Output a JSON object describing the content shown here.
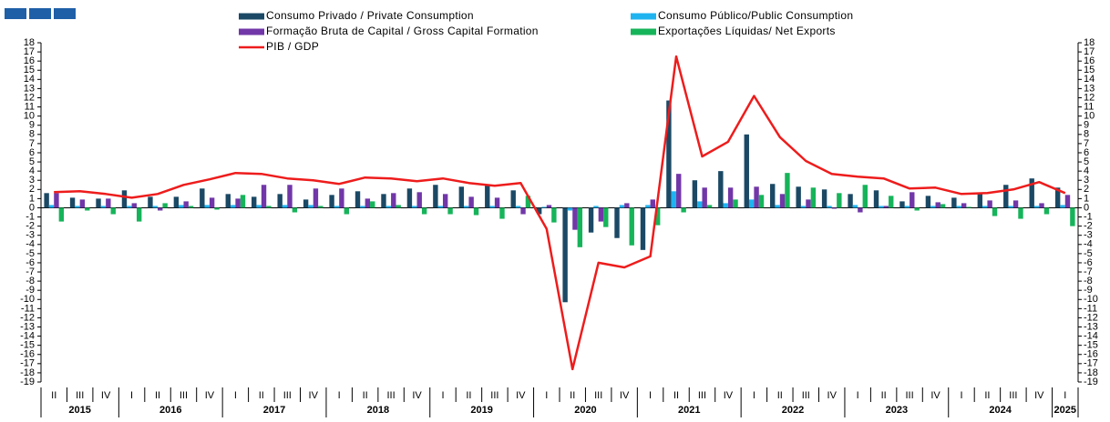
{
  "chart_data": {
    "type": "bar",
    "categories": [
      "II",
      "III",
      "IV",
      "I",
      "II",
      "III",
      "IV",
      "I",
      "II",
      "III",
      "IV",
      "I",
      "II",
      "III",
      "IV",
      "I",
      "II",
      "III",
      "IV",
      "I",
      "II",
      "III",
      "IV",
      "I",
      "II",
      "III",
      "IV",
      "I",
      "II",
      "III",
      "IV",
      "I",
      "II",
      "III",
      "IV",
      "I",
      "II",
      "III",
      "IV",
      "I"
    ],
    "years": [
      "2015",
      "2015",
      "2015",
      "2016",
      "2016",
      "2016",
      "2016",
      "2017",
      "2017",
      "2017",
      "2017",
      "2018",
      "2018",
      "2018",
      "2018",
      "2019",
      "2019",
      "2019",
      "2019",
      "2020",
      "2020",
      "2020",
      "2020",
      "2021",
      "2021",
      "2021",
      "2021",
      "2022",
      "2022",
      "2022",
      "2022",
      "2023",
      "2023",
      "2023",
      "2023",
      "2024",
      "2024",
      "2024",
      "2024",
      "2025"
    ],
    "series": [
      {
        "name": "Consumo Privado / Private Consumption",
        "color": "#1b4965",
        "type": "bar",
        "values": [
          1.6,
          1.1,
          1.0,
          1.9,
          1.2,
          1.2,
          2.1,
          1.5,
          1.2,
          1.5,
          0.9,
          1.4,
          1.8,
          1.5,
          2.1,
          2.5,
          2.3,
          2.5,
          1.9,
          -0.7,
          -10.3,
          -2.7,
          -3.3,
          -4.6,
          11.7,
          3.0,
          4.0,
          8.0,
          2.6,
          2.3,
          2.0,
          1.5,
          1.9,
          0.7,
          1.3,
          1.1,
          1.5,
          2.5,
          3.2,
          2.2
        ]
      },
      {
        "name": "Consumo Público/Public Consumption",
        "color": "#1fb4f0",
        "type": "bar",
        "values": [
          0.3,
          0.2,
          0.2,
          0.2,
          0.2,
          0.3,
          0.3,
          0.3,
          0.3,
          0.3,
          0.3,
          0.2,
          0.2,
          0.2,
          0.2,
          0.2,
          0.2,
          0.2,
          0.2,
          0.1,
          -0.3,
          0.2,
          0.3,
          0.3,
          1.8,
          0.7,
          0.5,
          0.9,
          0.3,
          0.2,
          0.2,
          0.3,
          0.2,
          0.2,
          0.2,
          0.2,
          0.2,
          0.2,
          0.2,
          0.3
        ]
      },
      {
        "name": "Formação Bruta de Capital / Gross Capital Formation",
        "color": "#7137a8",
        "type": "bar",
        "values": [
          1.6,
          0.9,
          1.0,
          0.5,
          -0.3,
          0.7,
          1.1,
          1.0,
          2.5,
          2.5,
          2.1,
          2.1,
          1.0,
          1.6,
          1.7,
          1.5,
          1.2,
          1.1,
          -0.7,
          0.3,
          -2.4,
          -1.5,
          0.5,
          0.9,
          3.7,
          2.2,
          2.2,
          2.3,
          1.5,
          0.9,
          -0.1,
          -0.5,
          0.2,
          1.7,
          0.6,
          0.5,
          0.8,
          0.8,
          0.5,
          1.4
        ]
      },
      {
        "name": "Exportações Líquidas/ Net Exports",
        "color": "#16b45a",
        "type": "bar",
        "values": [
          -1.5,
          -0.3,
          -0.7,
          -1.5,
          0.5,
          0.2,
          -0.2,
          1.4,
          0.2,
          -0.5,
          0.2,
          -0.7,
          0.7,
          0.3,
          -0.7,
          -0.7,
          -0.8,
          -1.2,
          1.3,
          -1.6,
          -4.3,
          -2.1,
          -4.1,
          -1.9,
          -0.5,
          0.3,
          0.9,
          1.4,
          3.8,
          2.2,
          1.6,
          2.5,
          1.3,
          -0.3,
          0.4,
          0.1,
          -0.9,
          -1.2,
          -0.7,
          -2.0
        ]
      },
      {
        "name": "PIB / GDP",
        "color": "#ee1c1c",
        "type": "line",
        "values": [
          1.7,
          1.8,
          1.5,
          1.1,
          1.5,
          2.5,
          3.1,
          3.8,
          3.7,
          3.2,
          3.0,
          2.6,
          3.3,
          3.2,
          2.9,
          3.2,
          2.7,
          2.4,
          2.7,
          -2.3,
          -17.6,
          -6.0,
          -6.5,
          -5.3,
          16.5,
          5.6,
          7.2,
          12.2,
          7.7,
          5.1,
          3.7,
          3.4,
          3.2,
          2.1,
          2.2,
          1.5,
          1.6,
          2.0,
          2.8,
          1.6
        ]
      }
    ],
    "ylim": [
      -19,
      18
    ],
    "yticks": [
      -19,
      -18,
      -17,
      -16,
      -15,
      -14,
      -13,
      -12,
      -11,
      -10,
      -9,
      -8,
      -7,
      -6,
      -5,
      -4,
      -3,
      -2,
      -1,
      0,
      1,
      2,
      3,
      4,
      5,
      6,
      7,
      8,
      9,
      10,
      11,
      12,
      13,
      14,
      15,
      16,
      17,
      18
    ]
  }
}
